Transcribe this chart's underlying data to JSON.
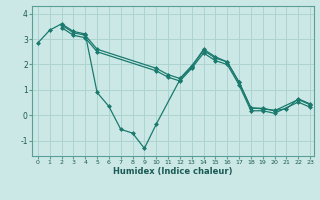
{
  "xlabel": "Humidex (Indice chaleur)",
  "background_color": "#cce8e6",
  "grid_color": "#aed4d2",
  "line_color": "#1a7a6e",
  "xlim": [
    -0.5,
    23.3
  ],
  "ylim": [
    -1.6,
    4.3
  ],
  "yticks": [
    -1,
    0,
    1,
    2,
    3,
    4
  ],
  "xticks": [
    0,
    1,
    2,
    3,
    4,
    5,
    6,
    7,
    8,
    9,
    10,
    11,
    12,
    13,
    14,
    15,
    16,
    17,
    18,
    19,
    20,
    21,
    22,
    23
  ],
  "series": [
    {
      "x": [
        0,
        1,
        2,
        3,
        4,
        5,
        6,
        7,
        8,
        9,
        10,
        12,
        13,
        14,
        15,
        16,
        17,
        18,
        19,
        20,
        21,
        22,
        23
      ],
      "y": [
        2.85,
        3.35,
        3.6,
        3.3,
        3.2,
        0.9,
        0.35,
        -0.55,
        -0.7,
        -1.3,
        -0.35,
        1.4,
        1.9,
        2.6,
        2.3,
        2.1,
        1.3,
        0.3,
        0.25,
        0.2,
        0.25,
        0.65,
        0.45
      ]
    },
    {
      "x": [
        2,
        3,
        4,
        5,
        10,
        11,
        12,
        13,
        14,
        15,
        16,
        17,
        18,
        19,
        20,
        22,
        23
      ],
      "y": [
        3.55,
        3.25,
        3.15,
        2.6,
        1.85,
        1.6,
        1.45,
        1.95,
        2.55,
        2.25,
        2.1,
        1.3,
        0.28,
        0.28,
        0.18,
        0.62,
        0.42
      ]
    },
    {
      "x": [
        2,
        3,
        4,
        5,
        10,
        11,
        12,
        13,
        14,
        15,
        16,
        17,
        18,
        19,
        20,
        22,
        23
      ],
      "y": [
        3.45,
        3.15,
        3.05,
        2.5,
        1.75,
        1.5,
        1.35,
        1.85,
        2.45,
        2.15,
        2.0,
        1.2,
        0.18,
        0.18,
        0.08,
        0.52,
        0.32
      ]
    }
  ]
}
